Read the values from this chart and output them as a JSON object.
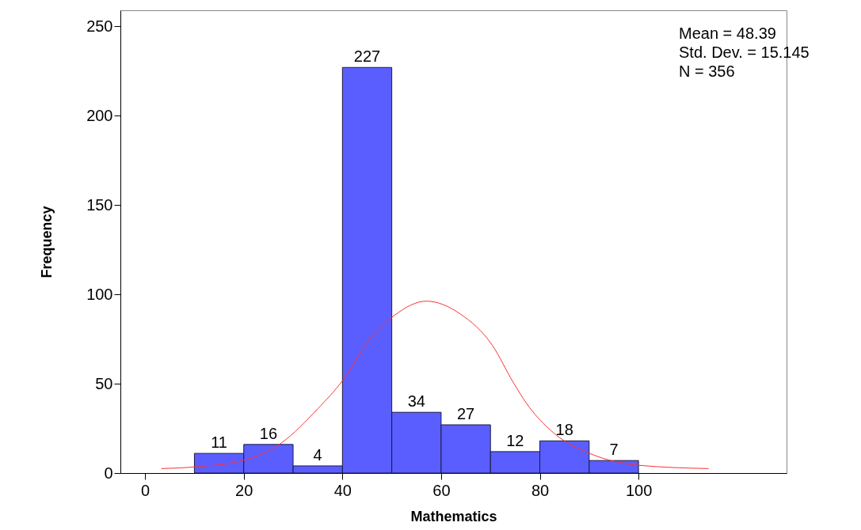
{
  "chart_data": {
    "type": "histogram",
    "xlabel": "Mathematics",
    "ylabel": "Frequency",
    "bins": [
      10,
      20,
      30,
      40,
      50,
      60,
      70,
      80,
      90,
      100
    ],
    "values": [
      11,
      16,
      4,
      227,
      34,
      27,
      12,
      18,
      7
    ],
    "color": "#5a5eff",
    "value_labels": [
      "11",
      "16",
      "4",
      "227",
      "34",
      "27",
      "12",
      "18",
      "7"
    ],
    "xlim": [
      -5,
      130
    ],
    "ylim": [
      0,
      259
    ],
    "xticks": [
      0,
      20,
      40,
      60,
      80,
      100
    ],
    "yticks": [
      0,
      50,
      100,
      150,
      200,
      250
    ],
    "grid": false,
    "series": [
      {
        "type": "line",
        "color": "#ff3030",
        "x": [
          3.3,
          10.4,
          20.1,
          27.6,
          35.0,
          40.1,
          45.2,
          50.6,
          57,
          63.9,
          70.4,
          74.6,
          77.3,
          82.7,
          90.2,
          100.3,
          114.2
        ],
        "values": [
          2.5,
          3.5,
          7.2,
          16.8,
          36,
          52,
          73.6,
          88.4,
          96.2,
          89,
          71.4,
          50.8,
          39,
          22.7,
          10.9,
          4.3,
          2.5
        ]
      }
    ],
    "annotations": [
      "Mean = 48.39",
      "Std. Dev. = 15.145",
      "N = 356"
    ]
  }
}
